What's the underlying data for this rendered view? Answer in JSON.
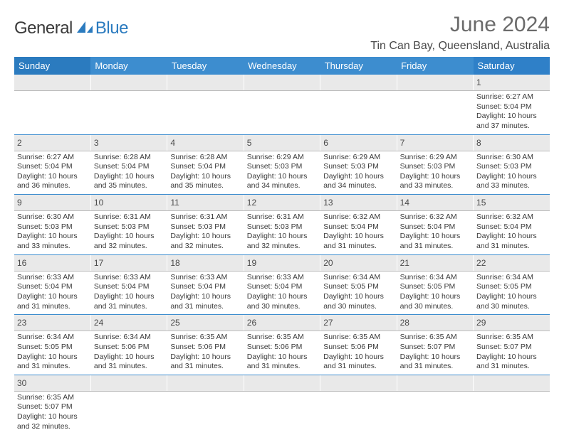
{
  "logo": {
    "text_main": "General",
    "text_blue": "Blue"
  },
  "title": "June 2024",
  "location": "Tin Can Bay, Queensland, Australia",
  "colors": {
    "header_sunday": "#2b7bbf",
    "header_weekday": "#3d8dcf",
    "header_saturday": "#2f80c8",
    "header_text": "#ffffff",
    "numrow_bg": "#e9e9e9",
    "rule": "#3d8dcf",
    "text": "#3a3a3a",
    "title_color": "#6b6b6b"
  },
  "typography": {
    "title_fontsize": 30,
    "location_fontsize": 16,
    "header_fontsize": 13,
    "daynum_fontsize": 12,
    "detail_fontsize": 10.5
  },
  "day_headers": [
    "Sunday",
    "Monday",
    "Tuesday",
    "Wednesday",
    "Thursday",
    "Friday",
    "Saturday"
  ],
  "weeks": [
    [
      {
        "n": "",
        "sunrise": "",
        "sunset": "",
        "daylight": ""
      },
      {
        "n": "",
        "sunrise": "",
        "sunset": "",
        "daylight": ""
      },
      {
        "n": "",
        "sunrise": "",
        "sunset": "",
        "daylight": ""
      },
      {
        "n": "",
        "sunrise": "",
        "sunset": "",
        "daylight": ""
      },
      {
        "n": "",
        "sunrise": "",
        "sunset": "",
        "daylight": ""
      },
      {
        "n": "",
        "sunrise": "",
        "sunset": "",
        "daylight": ""
      },
      {
        "n": "1",
        "sunrise": "Sunrise: 6:27 AM",
        "sunset": "Sunset: 5:04 PM",
        "daylight": "Daylight: 10 hours and 37 minutes."
      }
    ],
    [
      {
        "n": "2",
        "sunrise": "Sunrise: 6:27 AM",
        "sunset": "Sunset: 5:04 PM",
        "daylight": "Daylight: 10 hours and 36 minutes."
      },
      {
        "n": "3",
        "sunrise": "Sunrise: 6:28 AM",
        "sunset": "Sunset: 5:04 PM",
        "daylight": "Daylight: 10 hours and 35 minutes."
      },
      {
        "n": "4",
        "sunrise": "Sunrise: 6:28 AM",
        "sunset": "Sunset: 5:04 PM",
        "daylight": "Daylight: 10 hours and 35 minutes."
      },
      {
        "n": "5",
        "sunrise": "Sunrise: 6:29 AM",
        "sunset": "Sunset: 5:03 PM",
        "daylight": "Daylight: 10 hours and 34 minutes."
      },
      {
        "n": "6",
        "sunrise": "Sunrise: 6:29 AM",
        "sunset": "Sunset: 5:03 PM",
        "daylight": "Daylight: 10 hours and 34 minutes."
      },
      {
        "n": "7",
        "sunrise": "Sunrise: 6:29 AM",
        "sunset": "Sunset: 5:03 PM",
        "daylight": "Daylight: 10 hours and 33 minutes."
      },
      {
        "n": "8",
        "sunrise": "Sunrise: 6:30 AM",
        "sunset": "Sunset: 5:03 PM",
        "daylight": "Daylight: 10 hours and 33 minutes."
      }
    ],
    [
      {
        "n": "9",
        "sunrise": "Sunrise: 6:30 AM",
        "sunset": "Sunset: 5:03 PM",
        "daylight": "Daylight: 10 hours and 33 minutes."
      },
      {
        "n": "10",
        "sunrise": "Sunrise: 6:31 AM",
        "sunset": "Sunset: 5:03 PM",
        "daylight": "Daylight: 10 hours and 32 minutes."
      },
      {
        "n": "11",
        "sunrise": "Sunrise: 6:31 AM",
        "sunset": "Sunset: 5:03 PM",
        "daylight": "Daylight: 10 hours and 32 minutes."
      },
      {
        "n": "12",
        "sunrise": "Sunrise: 6:31 AM",
        "sunset": "Sunset: 5:03 PM",
        "daylight": "Daylight: 10 hours and 32 minutes."
      },
      {
        "n": "13",
        "sunrise": "Sunrise: 6:32 AM",
        "sunset": "Sunset: 5:04 PM",
        "daylight": "Daylight: 10 hours and 31 minutes."
      },
      {
        "n": "14",
        "sunrise": "Sunrise: 6:32 AM",
        "sunset": "Sunset: 5:04 PM",
        "daylight": "Daylight: 10 hours and 31 minutes."
      },
      {
        "n": "15",
        "sunrise": "Sunrise: 6:32 AM",
        "sunset": "Sunset: 5:04 PM",
        "daylight": "Daylight: 10 hours and 31 minutes."
      }
    ],
    [
      {
        "n": "16",
        "sunrise": "Sunrise: 6:33 AM",
        "sunset": "Sunset: 5:04 PM",
        "daylight": "Daylight: 10 hours and 31 minutes."
      },
      {
        "n": "17",
        "sunrise": "Sunrise: 6:33 AM",
        "sunset": "Sunset: 5:04 PM",
        "daylight": "Daylight: 10 hours and 31 minutes."
      },
      {
        "n": "18",
        "sunrise": "Sunrise: 6:33 AM",
        "sunset": "Sunset: 5:04 PM",
        "daylight": "Daylight: 10 hours and 31 minutes."
      },
      {
        "n": "19",
        "sunrise": "Sunrise: 6:33 AM",
        "sunset": "Sunset: 5:04 PM",
        "daylight": "Daylight: 10 hours and 30 minutes."
      },
      {
        "n": "20",
        "sunrise": "Sunrise: 6:34 AM",
        "sunset": "Sunset: 5:05 PM",
        "daylight": "Daylight: 10 hours and 30 minutes."
      },
      {
        "n": "21",
        "sunrise": "Sunrise: 6:34 AM",
        "sunset": "Sunset: 5:05 PM",
        "daylight": "Daylight: 10 hours and 30 minutes."
      },
      {
        "n": "22",
        "sunrise": "Sunrise: 6:34 AM",
        "sunset": "Sunset: 5:05 PM",
        "daylight": "Daylight: 10 hours and 30 minutes."
      }
    ],
    [
      {
        "n": "23",
        "sunrise": "Sunrise: 6:34 AM",
        "sunset": "Sunset: 5:05 PM",
        "daylight": "Daylight: 10 hours and 31 minutes."
      },
      {
        "n": "24",
        "sunrise": "Sunrise: 6:34 AM",
        "sunset": "Sunset: 5:06 PM",
        "daylight": "Daylight: 10 hours and 31 minutes."
      },
      {
        "n": "25",
        "sunrise": "Sunrise: 6:35 AM",
        "sunset": "Sunset: 5:06 PM",
        "daylight": "Daylight: 10 hours and 31 minutes."
      },
      {
        "n": "26",
        "sunrise": "Sunrise: 6:35 AM",
        "sunset": "Sunset: 5:06 PM",
        "daylight": "Daylight: 10 hours and 31 minutes."
      },
      {
        "n": "27",
        "sunrise": "Sunrise: 6:35 AM",
        "sunset": "Sunset: 5:06 PM",
        "daylight": "Daylight: 10 hours and 31 minutes."
      },
      {
        "n": "28",
        "sunrise": "Sunrise: 6:35 AM",
        "sunset": "Sunset: 5:07 PM",
        "daylight": "Daylight: 10 hours and 31 minutes."
      },
      {
        "n": "29",
        "sunrise": "Sunrise: 6:35 AM",
        "sunset": "Sunset: 5:07 PM",
        "daylight": "Daylight: 10 hours and 31 minutes."
      }
    ],
    [
      {
        "n": "30",
        "sunrise": "Sunrise: 6:35 AM",
        "sunset": "Sunset: 5:07 PM",
        "daylight": "Daylight: 10 hours and 32 minutes."
      },
      {
        "n": "",
        "sunrise": "",
        "sunset": "",
        "daylight": ""
      },
      {
        "n": "",
        "sunrise": "",
        "sunset": "",
        "daylight": ""
      },
      {
        "n": "",
        "sunrise": "",
        "sunset": "",
        "daylight": ""
      },
      {
        "n": "",
        "sunrise": "",
        "sunset": "",
        "daylight": ""
      },
      {
        "n": "",
        "sunrise": "",
        "sunset": "",
        "daylight": ""
      },
      {
        "n": "",
        "sunrise": "",
        "sunset": "",
        "daylight": ""
      }
    ]
  ]
}
